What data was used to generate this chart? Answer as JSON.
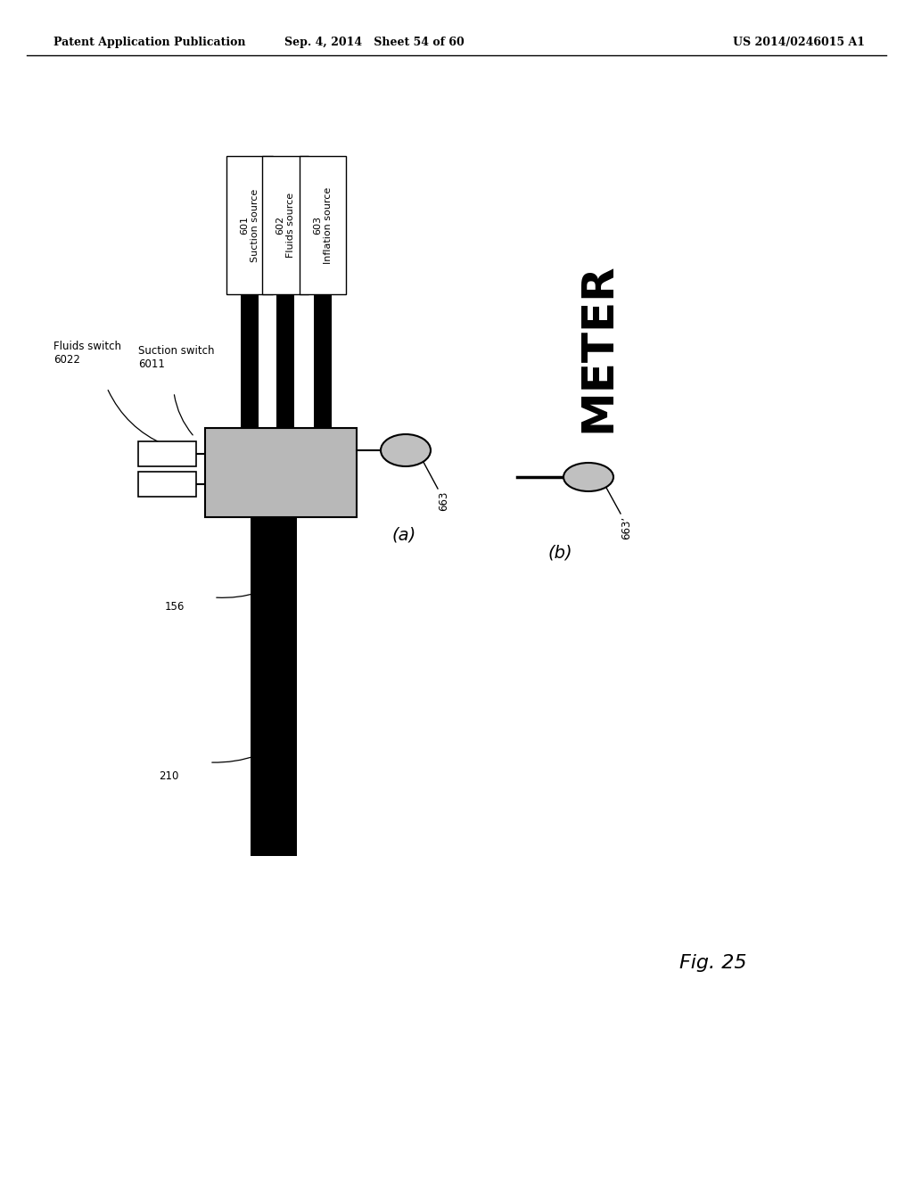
{
  "title_left": "Patent Application Publication",
  "title_mid": "Sep. 4, 2014   Sheet 54 of 60",
  "title_right": "US 2014/0246015 A1",
  "fig_label": "Fig. 25",
  "bg_color": "#ffffff"
}
